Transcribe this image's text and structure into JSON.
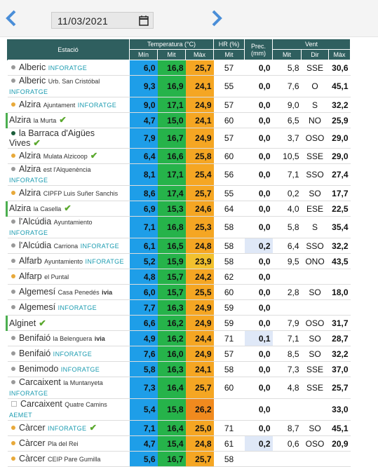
{
  "header": {
    "date": "11/03/2021"
  },
  "table": {
    "columns": {
      "station": "Estació",
      "temperature": "Temperatura (°C)",
      "humidity": "HR (%)",
      "precipitation": "Prec. (mm)",
      "wind": "Vent",
      "sub": [
        "Mín",
        "Mit",
        "Màx",
        "Mit",
        "Mit",
        "Dir",
        "Màx"
      ]
    },
    "rows": [
      {
        "name": "Alberic",
        "place": null,
        "tag": "INFORATGE",
        "check": false,
        "marker": "gray",
        "values": [
          "6,0",
          "16,8",
          "25,7",
          "57",
          "0,0",
          "5,8",
          "SSE",
          "30,6"
        ]
      },
      {
        "name": "Alberic",
        "place": "Urb. San Cristóbal",
        "tag": "INFORATGE",
        "check": false,
        "marker": "gray",
        "values": [
          "9,3",
          "16,9",
          "24,1",
          "55",
          "0,0",
          "7,6",
          "O",
          "45,1"
        ]
      },
      {
        "name": "Alzira",
        "place": "Ajuntament",
        "tag": "INFORATGE",
        "check": false,
        "marker": "orange",
        "values": [
          "9,0",
          "17,1",
          "24,9",
          "57",
          "0,0",
          "9,0",
          "S",
          "32,2"
        ]
      },
      {
        "name": "Alzira",
        "place": "la Murta",
        "tag": null,
        "check": true,
        "marker": "bar",
        "values": [
          "4,7",
          "15,0",
          "24,1",
          "60",
          "0,0",
          "6,5",
          "NO",
          "25,9"
        ]
      },
      {
        "name": "la Barraca d'Aigües Vives",
        "place": null,
        "tag": null,
        "check": true,
        "marker": "darkgreen",
        "values": [
          "7,9",
          "16,7",
          "24,9",
          "57",
          "0,0",
          "3,7",
          "OSO",
          "29,0"
        ]
      },
      {
        "name": "Alzira",
        "place": "Mulata Alzicoop",
        "tag": null,
        "check": true,
        "marker": "orange",
        "values": [
          "6,4",
          "16,6",
          "25,8",
          "60",
          "0,0",
          "10,5",
          "SSE",
          "29,0"
        ]
      },
      {
        "name": "Alzira",
        "place": "est l'Alquenència",
        "tag": "INFORATGE",
        "check": false,
        "marker": "gray",
        "values": [
          "8,1",
          "17,1",
          "25,4",
          "56",
          "0,0",
          "7,1",
          "SSO",
          "27,4"
        ]
      },
      {
        "name": "Alzira",
        "place": "CIPFP Luis Suñer Sanchis",
        "tag": null,
        "check": false,
        "marker": "orange",
        "values": [
          "8,6",
          "17,4",
          "25,7",
          "55",
          "0,0",
          "0,2",
          "SO",
          "17,7"
        ]
      },
      {
        "name": "Alzira",
        "place": "la Casella",
        "tag": null,
        "check": true,
        "marker": "bar",
        "values": [
          "6,9",
          "15,3",
          "24,6",
          "64",
          "0,0",
          "4,0",
          "ESE",
          "22,5"
        ]
      },
      {
        "name": "l'Alcúdia",
        "place": "Ayuntamiento",
        "tag": "INFORATGE",
        "check": false,
        "marker": "gray",
        "values": [
          "7,1",
          "16,8",
          "25,3",
          "58",
          "0,0",
          "5,8",
          "S",
          "35,4"
        ]
      },
      {
        "name": "l'Alcúdia",
        "place": "Carriona",
        "tag": "INFORATGE",
        "check": false,
        "marker": "gray",
        "values": [
          "6,1",
          "16,5",
          "24,8",
          "58",
          "0,2",
          "6,4",
          "SSO",
          "32,2"
        ]
      },
      {
        "name": "Alfarb",
        "place": "Ayuntamiento",
        "tag": "INFORATGE",
        "check": false,
        "marker": "gray",
        "values": [
          "5,2",
          "15,9",
          "23,9",
          "58",
          "0,0",
          "9,5",
          "ONO",
          "43,5"
        ]
      },
      {
        "name": "Alfarp",
        "place": "el Puntal",
        "tag": null,
        "check": false,
        "marker": "orange",
        "values": [
          "4,8",
          "15,7",
          "24,2",
          "62",
          "0,0",
          null,
          null,
          null
        ]
      },
      {
        "name": "Algemesí",
        "place": "Casa Penedés",
        "tag": "ivia",
        "check": false,
        "marker": "gray",
        "values": [
          "6,0",
          "15,7",
          "25,5",
          "60",
          "0,0",
          "2,8",
          "SO",
          "18,0"
        ]
      },
      {
        "name": "Algemesí",
        "place": null,
        "tag": "INFORATGE",
        "check": false,
        "marker": "gray",
        "values": [
          "7,7",
          "16,3",
          "24,9",
          "59",
          "0,0",
          null,
          null,
          null
        ]
      },
      {
        "name": "Alginet",
        "place": null,
        "tag": null,
        "check": true,
        "marker": "bar",
        "values": [
          "6,6",
          "16,2",
          "24,9",
          "59",
          "0,0",
          "7,9",
          "OSO",
          "31,7"
        ]
      },
      {
        "name": "Benifaió",
        "place": "la Belenguera",
        "tag": "ivia",
        "check": false,
        "marker": "gray",
        "values": [
          "4,9",
          "16,2",
          "24,4",
          "71",
          "0,1",
          "7,1",
          "SO",
          "28,7"
        ]
      },
      {
        "name": "Benifaió",
        "place": null,
        "tag": "INFORATGE",
        "check": false,
        "marker": "gray",
        "values": [
          "7,6",
          "16,0",
          "24,9",
          "57",
          "0,0",
          "8,5",
          "SO",
          "32,2"
        ]
      },
      {
        "name": "Benimodo",
        "place": null,
        "tag": "INFORATGE",
        "check": false,
        "marker": "gray",
        "values": [
          "5,8",
          "16,3",
          "24,1",
          "58",
          "0,0",
          "7,3",
          "SSE",
          "37,0"
        ]
      },
      {
        "name": "Carcaixent",
        "place": "la Muntanyeta",
        "tag": "INFORATGE",
        "check": false,
        "marker": "gray",
        "values": [
          "7,3",
          "16,4",
          "25,7",
          "60",
          "0,0",
          "4,8",
          "SSE",
          "25,7"
        ]
      },
      {
        "name": "Carcaixent",
        "place": "Quatre Camins",
        "tag": "AEMET",
        "check": false,
        "marker": "icon",
        "values": [
          "5,4",
          "15,8",
          "26,2",
          null,
          "0,0",
          null,
          null,
          "33,0"
        ]
      },
      {
        "name": "Càrcer",
        "place": null,
        "tag": "INFORATGE",
        "check": true,
        "marker": "orange",
        "values": [
          "7,1",
          "16,4",
          "25,0",
          "71",
          "0,0",
          "8,7",
          "SO",
          "45,1"
        ]
      },
      {
        "name": "Càrcer",
        "place": "Pla del Rei",
        "tag": null,
        "check": false,
        "marker": "orange",
        "values": [
          "4,7",
          "15,4",
          "24,8",
          "61",
          "0,2",
          "0,6",
          "OSO",
          "20,9"
        ]
      },
      {
        "name": "Càrcer",
        "place": "CEIP Pare Gumilla",
        "tag": null,
        "check": false,
        "marker": "orange",
        "values": [
          "5,6",
          "16,7",
          "25,7",
          "58",
          null,
          null,
          null,
          null
        ]
      }
    ]
  }
}
